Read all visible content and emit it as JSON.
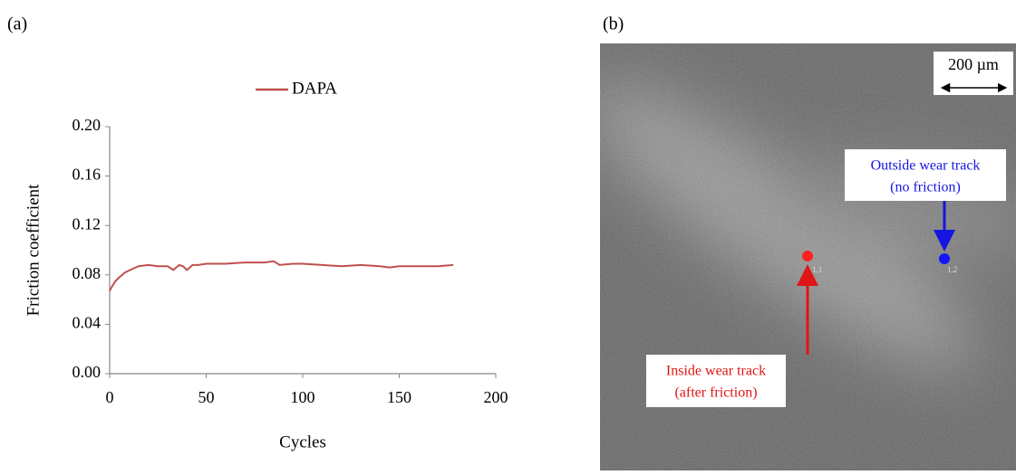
{
  "chart_data": {
    "type": "line",
    "xlabel": "Cycles",
    "ylabel": "Friction coefficient",
    "x": [
      0,
      1,
      3,
      5,
      8,
      12,
      15,
      20,
      25,
      30,
      33,
      36,
      38,
      40,
      43,
      46,
      50,
      60,
      70,
      80,
      85,
      88,
      95,
      100,
      110,
      120,
      130,
      140,
      145,
      150,
      160,
      170,
      178
    ],
    "series": [
      {
        "name": "DAPA",
        "color": "#c0504d",
        "values": [
          0.067,
          0.07,
          0.075,
          0.078,
          0.082,
          0.085,
          0.087,
          0.088,
          0.087,
          0.087,
          0.084,
          0.088,
          0.087,
          0.084,
          0.088,
          0.088,
          0.089,
          0.089,
          0.09,
          0.09,
          0.091,
          0.088,
          0.089,
          0.089,
          0.088,
          0.087,
          0.088,
          0.087,
          0.086,
          0.087,
          0.087,
          0.087,
          0.088
        ]
      }
    ],
    "xlim": [
      0,
      200
    ],
    "xticks": [
      0,
      50,
      100,
      150,
      200
    ],
    "ylim": [
      0,
      0.2
    ],
    "yticks": [
      {
        "value": 0,
        "label": "0.00"
      },
      0.04,
      0.08,
      0.12,
      0.16,
      {
        "value": 0.2,
        "label": "0.20"
      }
    ],
    "legend": "top"
  },
  "panel_labels": [
    "(a)",
    "(b)"
  ],
  "image": {
    "scale_bar": "200 µm",
    "points": [
      "1.1",
      "1.2"
    ],
    "annotations": [
      {
        "lines": [
          "Inside wear track",
          "(after friction)"
        ]
      },
      {
        "lines": [
          "Outside wear track",
          "(no friction)"
        ]
      }
    ]
  }
}
